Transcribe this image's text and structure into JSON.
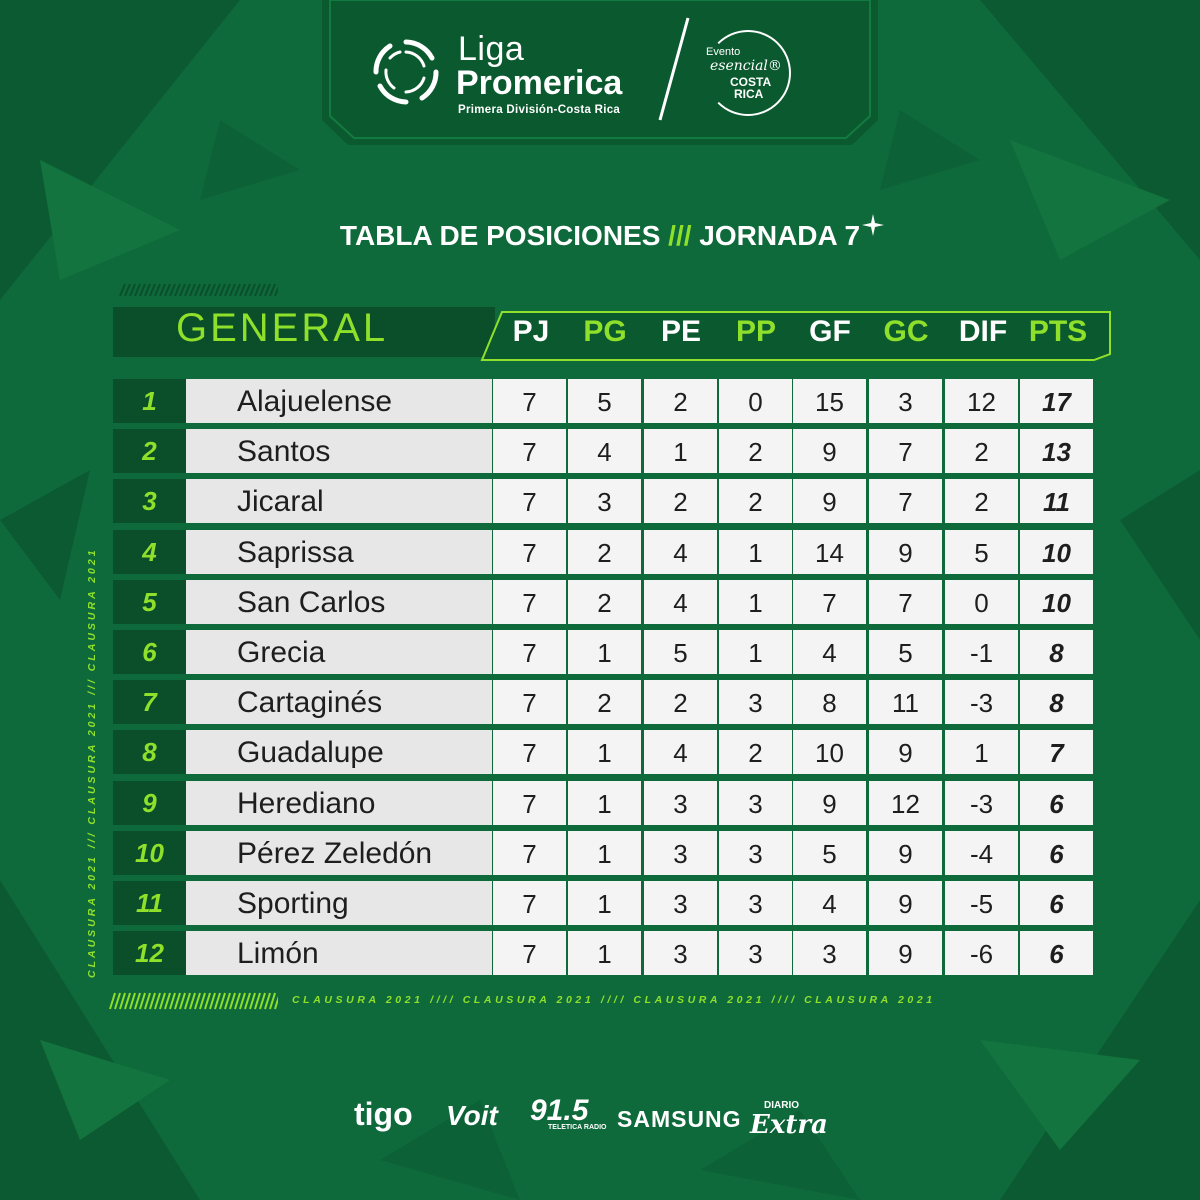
{
  "header": {
    "brand_line1": "Liga",
    "brand_line2": "Promerica",
    "brand_sub": "Primera División-Costa Rica",
    "badge": {
      "evento": "Evento",
      "esencial": "esencial®",
      "costa": "COSTA",
      "rica": "RICA"
    }
  },
  "title": {
    "left": "TABLA DE POSICIONES",
    "slashes": "///",
    "right": "JORNADA 7"
  },
  "table": {
    "section_label": "GENERAL",
    "columns": [
      "PJ",
      "PG",
      "PE",
      "PP",
      "GF",
      "GC",
      "DIF",
      "PTS"
    ],
    "rows": [
      {
        "rank": "1",
        "team": "Alajuelense",
        "pj": "7",
        "pg": "5",
        "pe": "2",
        "pp": "0",
        "gf": "15",
        "gc": "3",
        "dif": "12",
        "pts": "17"
      },
      {
        "rank": "2",
        "team": "Santos",
        "pj": "7",
        "pg": "4",
        "pe": "1",
        "pp": "2",
        "gf": "9",
        "gc": "7",
        "dif": "2",
        "pts": "13"
      },
      {
        "rank": "3",
        "team": "Jicaral",
        "pj": "7",
        "pg": "3",
        "pe": "2",
        "pp": "2",
        "gf": "9",
        "gc": "7",
        "dif": "2",
        "pts": "11"
      },
      {
        "rank": "4",
        "team": "Saprissa",
        "pj": "7",
        "pg": "2",
        "pe": "4",
        "pp": "1",
        "gf": "14",
        "gc": "9",
        "dif": "5",
        "pts": "10"
      },
      {
        "rank": "5",
        "team": "San Carlos",
        "pj": "7",
        "pg": "2",
        "pe": "4",
        "pp": "1",
        "gf": "7",
        "gc": "7",
        "dif": "0",
        "pts": "10"
      },
      {
        "rank": "6",
        "team": "Grecia",
        "pj": "7",
        "pg": "1",
        "pe": "5",
        "pp": "1",
        "gf": "4",
        "gc": "5",
        "dif": "-1",
        "pts": "8"
      },
      {
        "rank": "7",
        "team": "Cartaginés",
        "pj": "7",
        "pg": "2",
        "pe": "2",
        "pp": "3",
        "gf": "8",
        "gc": "11",
        "dif": "-3",
        "pts": "8"
      },
      {
        "rank": "8",
        "team": "Guadalupe",
        "pj": "7",
        "pg": "1",
        "pe": "4",
        "pp": "2",
        "gf": "10",
        "gc": "9",
        "dif": "1",
        "pts": "7"
      },
      {
        "rank": "9",
        "team": "Herediano",
        "pj": "7",
        "pg": "1",
        "pe": "3",
        "pp": "3",
        "gf": "9",
        "gc": "12",
        "dif": "-3",
        "pts": "6"
      },
      {
        "rank": "10",
        "team": "Pérez Zeledón",
        "pj": "7",
        "pg": "1",
        "pe": "3",
        "pp": "3",
        "gf": "5",
        "gc": "9",
        "dif": "-4",
        "pts": "6"
      },
      {
        "rank": "11",
        "team": "Sporting",
        "pj": "7",
        "pg": "1",
        "pe": "3",
        "pp": "3",
        "gf": "4",
        "gc": "9",
        "dif": "-5",
        "pts": "6"
      },
      {
        "rank": "12",
        "team": "Limón",
        "pj": "7",
        "pg": "1",
        "pe": "3",
        "pp": "3",
        "gf": "3",
        "gc": "9",
        "dif": "-6",
        "pts": "6"
      }
    ]
  },
  "side_text": "CLAUSURA 2021 /// CLAUSURA 2021 /// CLAUSURA 2021",
  "bottom_text": "CLAUSURA 2021 //// CLAUSURA 2021 //// CLAUSURA 2021 //// CLAUSURA 2021",
  "sponsors": {
    "tigo": "tigo",
    "voit": "Voit",
    "radio": "91.5",
    "radio_sub": "TELETICA RADIO",
    "samsung": "SAMSUNG",
    "diario": "DIARIO",
    "extra": "Extra"
  },
  "colors": {
    "background": "#0f6a3b",
    "panel_dark": "#0a4f29",
    "accent_green": "#8fe02b",
    "row_light": "#f4f4f4",
    "team_cell": "#e7e7e7"
  },
  "icons": {
    "logo": "liga-promerica-ring-icon",
    "sparkle": "sparkle-star-icon"
  }
}
